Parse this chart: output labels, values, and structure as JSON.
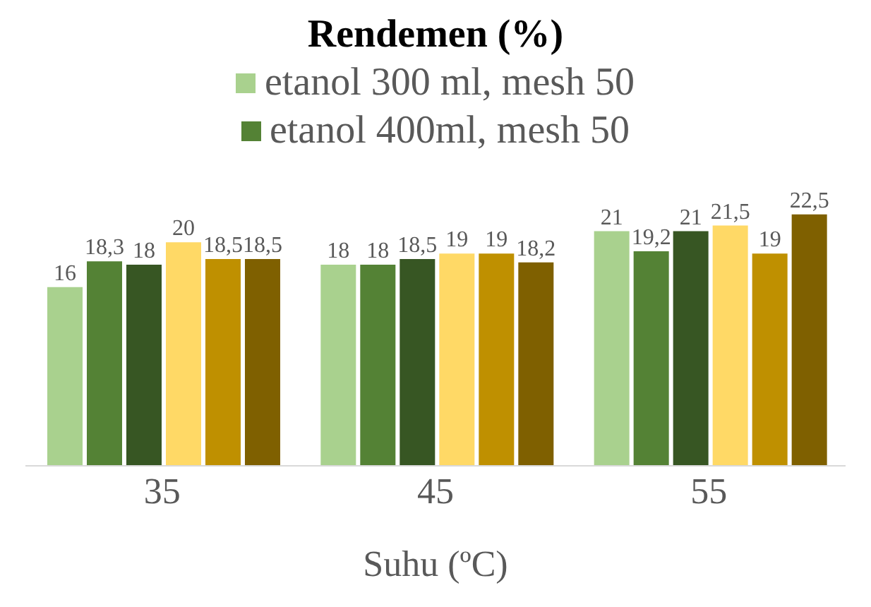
{
  "chart_data": {
    "type": "bar",
    "title": "Rendemen (%)",
    "xlabel": "Suhu (ºC)",
    "categories": [
      "35",
      "45",
      "55"
    ],
    "legend": "top",
    "series": [
      {
        "name": "etanol 300 ml, mesh 50",
        "color": "#a9d18e",
        "values": [
          16,
          18,
          21
        ],
        "value_labels": [
          "16",
          "18",
          "21"
        ]
      },
      {
        "name": "etanol 400ml, mesh 50",
        "color": "#548235",
        "values": [
          18.3,
          18,
          19.2
        ],
        "value_labels": [
          "18,3",
          "18",
          "19,2"
        ]
      },
      {
        "color": "#375623",
        "values": [
          18,
          18.5,
          21
        ],
        "value_labels": [
          "18",
          "18,5",
          "21"
        ]
      },
      {
        "color": "#ffd966",
        "values": [
          20,
          19,
          21.5
        ],
        "value_labels": [
          "20",
          "19",
          "21,5"
        ]
      },
      {
        "color": "#bf9000",
        "values": [
          18.5,
          19,
          19
        ],
        "value_labels": [
          "18,5",
          "19",
          "19"
        ]
      },
      {
        "color": "#7f6000",
        "values": [
          18.5,
          18.2,
          22.5
        ],
        "value_labels": [
          "18,5",
          "18,2",
          "22,5"
        ]
      }
    ]
  }
}
